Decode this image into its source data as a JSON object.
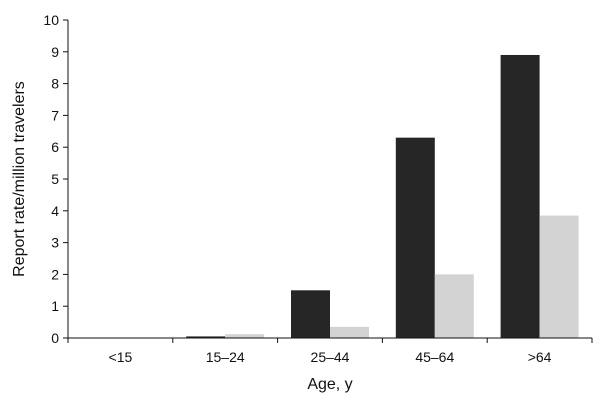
{
  "chart_data": {
    "type": "bar",
    "categories": [
      "<15",
      "15–24",
      "25–44",
      "45–64",
      ">64"
    ],
    "series": [
      {
        "values": [
          0,
          0.05,
          1.5,
          6.3,
          8.9
        ],
        "color": "#262626"
      },
      {
        "values": [
          0,
          0.12,
          0.35,
          2.0,
          3.85
        ],
        "color": "#d3d3d3"
      }
    ],
    "xlabel": "Age, y",
    "ylabel": "Report rate/million travelers",
    "ylim": [
      0,
      10
    ],
    "yticks": [
      0,
      1,
      2,
      3,
      4,
      5,
      6,
      7,
      8,
      9,
      10
    ],
    "grid": false,
    "legend": "none"
  }
}
